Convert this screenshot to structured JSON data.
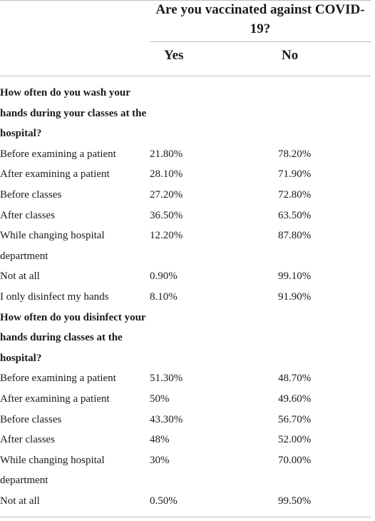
{
  "header": {
    "title": "Are you vaccinated against COVID-19?",
    "col_yes": "Yes",
    "col_no": "No"
  },
  "sections": [
    {
      "title": "How often do you wash your hands during your classes at the hospital?",
      "rows": [
        {
          "label": "Before examining a patient",
          "yes": "21.80%",
          "no": "78.20%"
        },
        {
          "label": "After examining a patient",
          "yes": "28.10%",
          "no": "71.90%"
        },
        {
          "label": "Before classes",
          "yes": "27.20%",
          "no": "72.80%"
        },
        {
          "label": "After classes",
          "yes": "36.50%",
          "no": "63.50%"
        },
        {
          "label": "While changing hospital department",
          "yes": "12.20%",
          "no": "87.80%"
        },
        {
          "label": "Not at all",
          "yes": "0.90%",
          "no": "99.10%"
        },
        {
          "label": "I only disinfect my hands",
          "yes": "8.10%",
          "no": "91.90%"
        }
      ]
    },
    {
      "title": "How often do you disinfect your hands during classes at the hospital?",
      "rows": [
        {
          "label": "Before examining a patient",
          "yes": "51.30%",
          "no": "48.70%"
        },
        {
          "label": "After examining a patient",
          "yes": "50%",
          "no": "49.60%"
        },
        {
          "label": "Before classes",
          "yes": "43.30%",
          "no": "56.70%"
        },
        {
          "label": "After classes",
          "yes": "48%",
          "no": "52.00%"
        },
        {
          "label": "While changing hospital department",
          "yes": "30%",
          "no": "70.00%"
        },
        {
          "label": "Not at all",
          "yes": "0.50%",
          "no": "99.50%"
        }
      ]
    }
  ]
}
